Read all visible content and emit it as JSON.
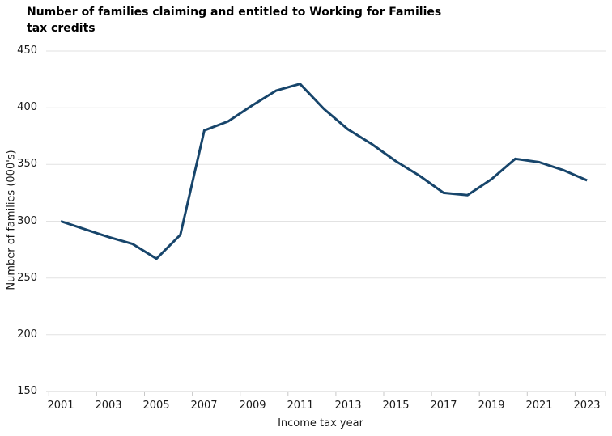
{
  "chart_data": {
    "type": "line",
    "title": "Number of families claiming and entitled to Working for Families\ntax credits",
    "xlabel": "Income tax year",
    "ylabel": "Number of families (000's)",
    "x": [
      2001,
      2002,
      2003,
      2004,
      2005,
      2006,
      2007,
      2008,
      2009,
      2010,
      2011,
      2012,
      2013,
      2014,
      2015,
      2016,
      2017,
      2018,
      2019,
      2020,
      2021,
      2022,
      2023
    ],
    "values": [
      300,
      293,
      286,
      280,
      267,
      288,
      380,
      388,
      402,
      415,
      421,
      399,
      381,
      368,
      353,
      340,
      325,
      323,
      337,
      355,
      352,
      345,
      336
    ],
    "x_tick_labels": [
      "2001",
      "2003",
      "2005",
      "2007",
      "2009",
      "2011",
      "2013",
      "2015",
      "2017",
      "2019",
      "2021",
      "2023"
    ],
    "y_ticks": [
      450,
      400,
      350,
      300,
      250,
      200,
      150
    ],
    "ylim": [
      150,
      450
    ],
    "grid": "horizontal",
    "legend": "none",
    "line_color": "#17456B",
    "gridline_color": "#E2E2E2",
    "axis_line_color": "#D2D2D2",
    "tick_color": "#C8C8C8",
    "text_color": "#1A1A1A"
  }
}
